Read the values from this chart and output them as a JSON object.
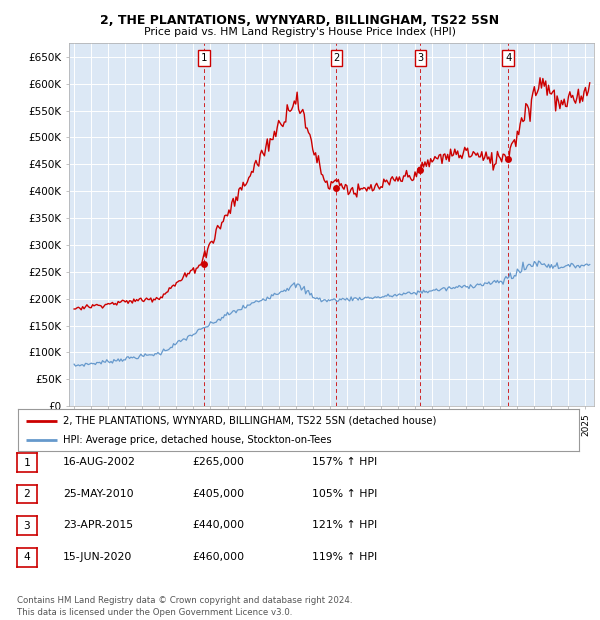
{
  "title1": "2, THE PLANTATIONS, WYNYARD, BILLINGHAM, TS22 5SN",
  "title2": "Price paid vs. HM Land Registry's House Price Index (HPI)",
  "red_color": "#cc0000",
  "blue_color": "#6699cc",
  "ylim": [
    0,
    675000
  ],
  "yticks": [
    0,
    50000,
    100000,
    150000,
    200000,
    250000,
    300000,
    350000,
    400000,
    450000,
    500000,
    550000,
    600000,
    650000
  ],
  "ytick_labels": [
    "£0",
    "£50K",
    "£100K",
    "£150K",
    "£200K",
    "£250K",
    "£300K",
    "£350K",
    "£400K",
    "£450K",
    "£500K",
    "£550K",
    "£600K",
    "£650K"
  ],
  "xlim_start": 1994.7,
  "xlim_end": 2025.5,
  "sale_dates": [
    2002.62,
    2010.39,
    2015.31,
    2020.46
  ],
  "sale_prices": [
    265000,
    405000,
    440000,
    460000
  ],
  "sale_labels": [
    "1",
    "2",
    "3",
    "4"
  ],
  "legend_red": "2, THE PLANTATIONS, WYNYARD, BILLINGHAM, TS22 5SN (detached house)",
  "legend_blue": "HPI: Average price, detached house, Stockton-on-Tees",
  "footnote": "Contains HM Land Registry data © Crown copyright and database right 2024.\nThis data is licensed under the Open Government Licence v3.0.",
  "table_rows": [
    [
      "1",
      "16-AUG-2002",
      "£265,000",
      "157% ↑ HPI"
    ],
    [
      "2",
      "25-MAY-2010",
      "£405,000",
      "105% ↑ HPI"
    ],
    [
      "3",
      "23-APR-2015",
      "£440,000",
      "121% ↑ HPI"
    ],
    [
      "4",
      "15-JUN-2020",
      "£460,000",
      "119% ↑ HPI"
    ]
  ]
}
